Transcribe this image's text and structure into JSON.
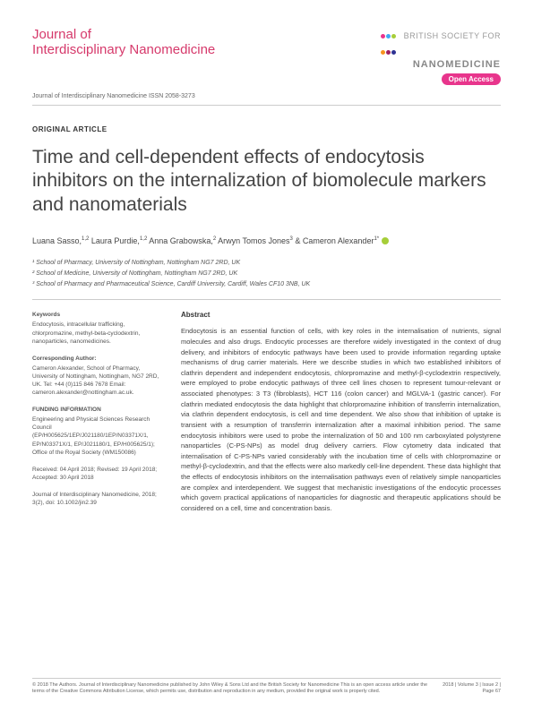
{
  "header": {
    "journal_line1": "Journal of",
    "journal_line2": "Interdisciplinary Nanomedicine",
    "society_line1": "BRITISH SOCIETY FOR",
    "society_line2": "NANOMEDICINE",
    "open_access": "Open Access",
    "logo_colors": [
      "#e8358c",
      "#3fa9f5",
      "#a6ce39",
      "#f7931e",
      "#9e1f63",
      "#2e3192"
    ]
  },
  "issn": "Journal of Interdisciplinary Nanomedicine ISSN 2058-3273",
  "article_type": "ORIGINAL ARTICLE",
  "title": "Time and cell-dependent effects of endocytosis inhibitors on the internalization of biomolecule markers and nanomaterials",
  "authors_html": "Luana Sasso,<sup>1,2</sup> Laura Purdie,<sup>1,2</sup> Anna Grabowska,<sup>2</sup> Arwyn Tomos Jones<sup>3</sup> & Cameron Alexander<sup>1*</sup>",
  "affiliations": [
    "¹ School of Pharmacy, University of Nottingham, Nottingham NG7 2RD, UK",
    "² School of Medicine, University of Nottingham, Nottingham NG7 2RD, UK",
    "³ School of Pharmacy and Pharmaceutical Science, Cardiff University, Cardiff, Wales CF10 3NB, UK"
  ],
  "sidebar": {
    "keywords_h": "Keywords",
    "keywords": "Endocytosis, intracellular trafficking, chlorpromazine, methyl-beta-cyclodextrin, nanoparticles, nanomedicines.",
    "corr_h": "Corresponding Author:",
    "corr": "Cameron Alexander, School of Pharmacy, University of Nottingham, Nottingham, NG7 2RD, UK. Tel: +44 (0)115 846 7678 Email: cameron.alexander@nottingham.ac.uk.",
    "funding_h": "FUNDING INFORMATION",
    "funding": "Engineering and Physical Sciences Research Council (EP/H005625/1EP/J021180/1EP/N03371X/1, EP/N03371X/1, EP/J021180/1, EP/H005625/1); Office of the Royal Society (WM150086)",
    "dates": "Received: 04 April 2018; Revised: 19 April 2018; Accepted: 30 April 2018",
    "citation": "Journal of Interdisciplinary Nanomedicine, 2018; 3(2), doi: 10.1002/jin2.39"
  },
  "abstract_h": "Abstract",
  "abstract": "Endocytosis is an essential function of cells, with key roles in the internalisation of nutrients, signal molecules and also drugs. Endocytic processes are therefore widely investigated in the context of drug delivery, and inhibitors of endocytic pathways have been used to provide information regarding uptake mechanisms of drug carrier materials. Here we describe studies in which two established inhibitors of clathrin dependent and independent endocytosis, chlorpromazine and methyl-β-cyclodextrin respectively, were employed to probe endocytic pathways of three cell lines chosen to represent tumour-relevant or associated phenotypes: 3 T3 (fibroblasts), HCT 116 (colon cancer) and MGLVA-1 (gastric cancer). For clathrin mediated endocytosis the data highlight that chlorpromazine inhibition of transferrin internalization, via clathrin dependent endocytosis, is cell and time dependent. We also show that inhibition of uptake is transient with a resumption of transferrin internalization after a maximal inhibition period. The same endocytosis inhibitors were used to probe the internalization of 50 and 100 nm carboxylated polystyrene nanoparticles (C-PS-NPs) as model drug delivery carriers. Flow cytometry data indicated that internalisation of C-PS-NPs varied considerably with the incubation time of cells with chlorpromazine or methyl-β-cyclodextrin, and that the effects were also markedly cell-line dependent. These data highlight that the effects of endocytosis inhibitors on the internalisation pathways even of relatively simple nanoparticles are complex and interdependent. We suggest that mechanistic investigations of the endocytic processes which govern practical applications of nanoparticles for diagnostic and therapeutic applications should be considered on a cell, time and concentration basis.",
  "footer": {
    "copyright": "© 2018 The Authors. Journal of Interdisciplinary Nanomedicine published by John Wiley & Sons Ltd and the British Society for Nanomedicine This is an open access article under the terms of the Creative Commons Attribution License, which permits use, distribution and reproduction in any medium, provided the original work is properly cited.",
    "vol": "2018 | Volume 3 | Issue 2 |",
    "page": "Page 67"
  }
}
